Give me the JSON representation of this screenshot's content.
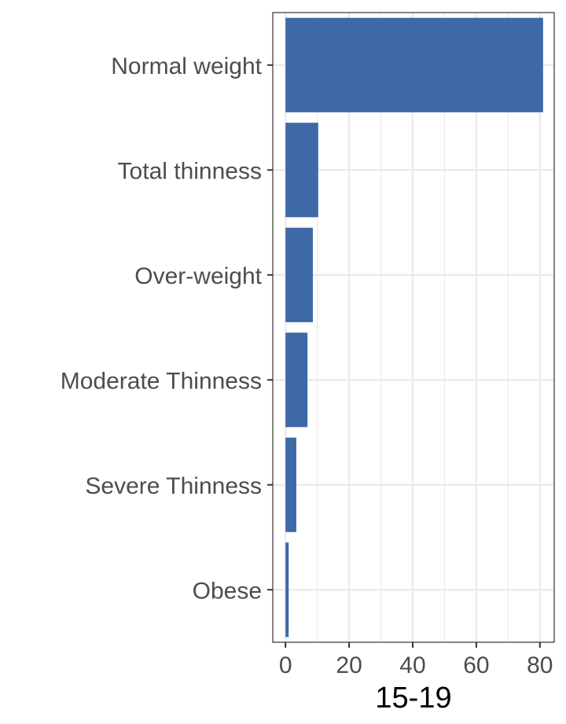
{
  "chart_data": {
    "type": "bar",
    "orientation": "horizontal",
    "categories": [
      "Normal weight",
      "Total thinness",
      "Over-weight",
      "Moderate Thinness",
      "Severe Thinness",
      "Obese"
    ],
    "values": [
      81,
      10.3,
      8.6,
      6.9,
      3.4,
      1.0
    ],
    "xlabel": "15-19",
    "ylabel": "",
    "xlim": [
      -4,
      84.5
    ],
    "xticks": [
      0,
      20,
      40,
      60,
      80
    ],
    "grid": true,
    "bar_color": "#3d69a6"
  }
}
